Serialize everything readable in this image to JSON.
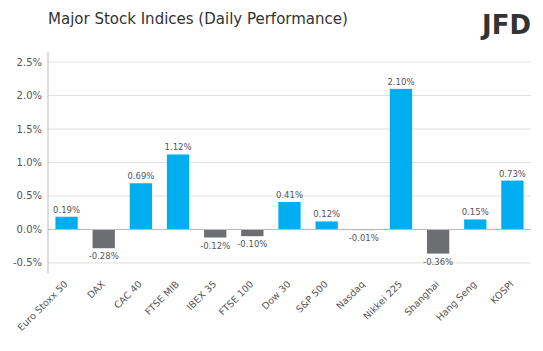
{
  "chart_data": {
    "type": "bar",
    "title": "Major Stock Indices (Daily Performance)",
    "annotations": [
      "JFD"
    ],
    "categories": [
      "Euro Stoxx 50",
      "DAX",
      "CAC 40",
      "FTSE MIB",
      "IBEX 35",
      "FTSE 100",
      "Dow 30",
      "S&P 500",
      "Nasdaq",
      "Nikkei 225",
      "Shanghai",
      "Hang Seng",
      "KOSPI"
    ],
    "values": [
      0.19,
      -0.28,
      0.69,
      1.12,
      -0.12,
      -0.1,
      0.41,
      0.12,
      -0.01,
      2.1,
      -0.36,
      0.15,
      0.73
    ],
    "value_labels": [
      "0.19%",
      "-0.28%",
      "0.69%",
      "1.12%",
      "-0.12%",
      "-0.10%",
      "0.41%",
      "0.12%",
      "-0.01%",
      "2.10%",
      "-0.36%",
      "0.15%",
      "0.73%"
    ],
    "colors": [
      "#00AEEF",
      "#6D6E71",
      "#00AEEF",
      "#00AEEF",
      "#6D6E71",
      "#6D6E71",
      "#00AEEF",
      "#00AEEF",
      "#6D6E71",
      "#00AEEF",
      "#6D6E71",
      "#00AEEF",
      "#00AEEF"
    ],
    "ylim": [
      -0.65,
      2.65
    ],
    "yticks": [
      {
        "value": -0.5,
        "label": "-0.5%"
      },
      {
        "value": 0.0,
        "label": "0.0%"
      },
      {
        "value": 0.5,
        "label": "0.5%"
      },
      {
        "value": 1.0,
        "label": "1.0%"
      },
      {
        "value": 1.5,
        "label": "1.5%"
      },
      {
        "value": 2.0,
        "label": "2.0%"
      },
      {
        "value": 2.5,
        "label": "2.5%"
      }
    ],
    "grid": true,
    "data_labels": true
  }
}
